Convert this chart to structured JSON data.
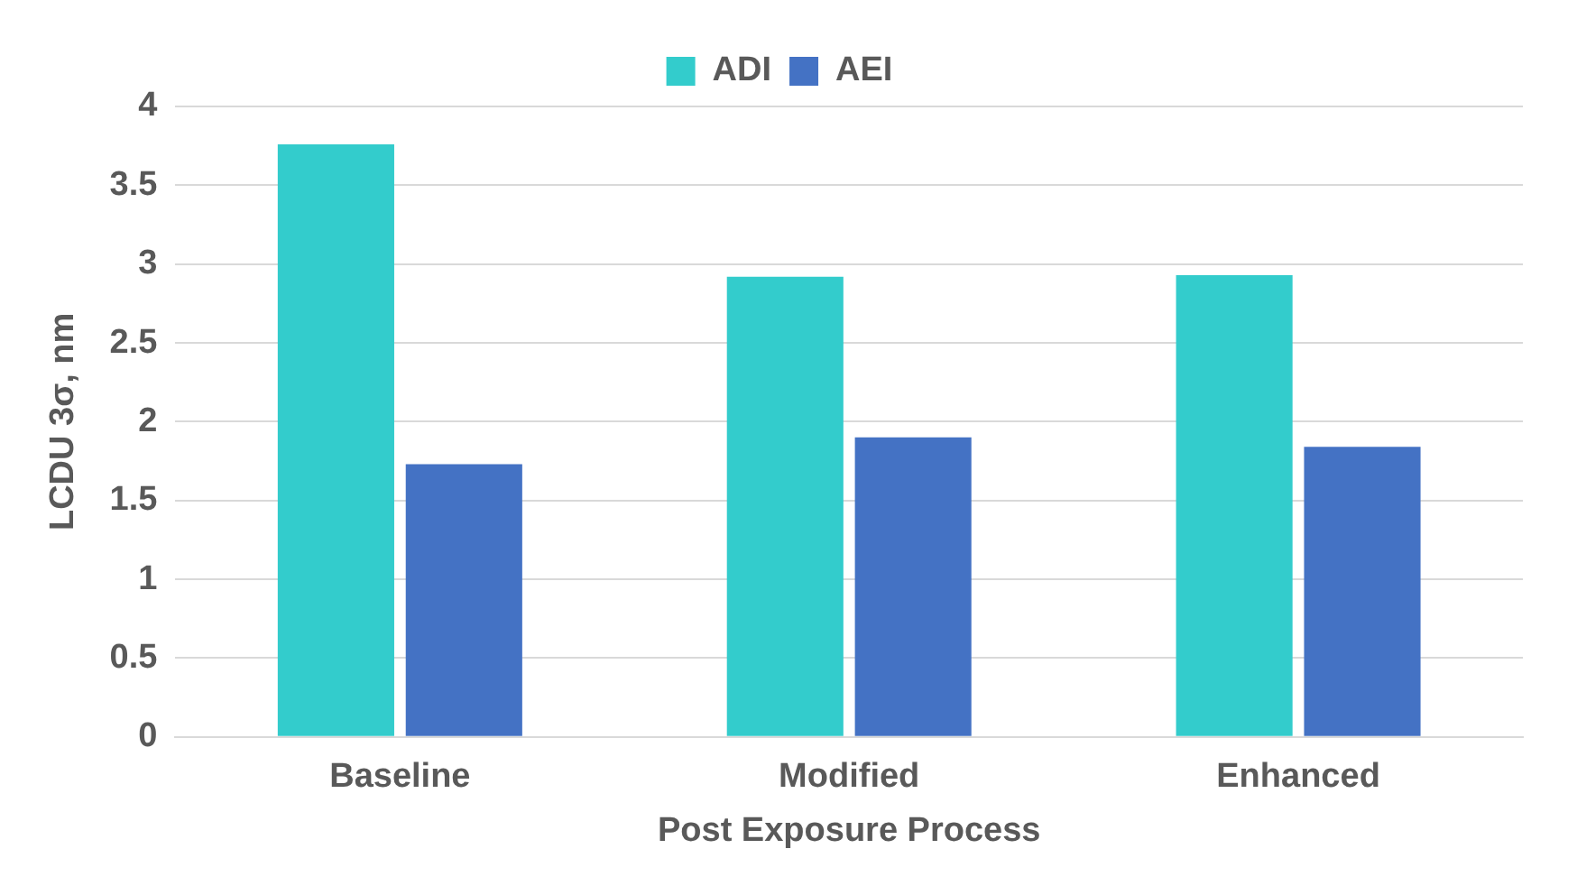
{
  "chart_data": {
    "type": "bar",
    "xlabel": "Post Exposure Process",
    "ylabel": "LCDU 3σ, nm",
    "categories": [
      "Baseline",
      "Modified",
      "Enhanced"
    ],
    "series": [
      {
        "name": "ADI",
        "color": "#33cccc",
        "values": [
          3.76,
          2.92,
          2.93
        ]
      },
      {
        "name": "AEI",
        "color": "#4472c4",
        "values": [
          1.73,
          1.9,
          1.84
        ]
      }
    ],
    "ylim": [
      0,
      4
    ],
    "yticks": [
      0,
      0.5,
      1,
      1.5,
      2,
      2.5,
      3,
      3.5,
      4
    ],
    "grid": "y",
    "legend": "top"
  }
}
